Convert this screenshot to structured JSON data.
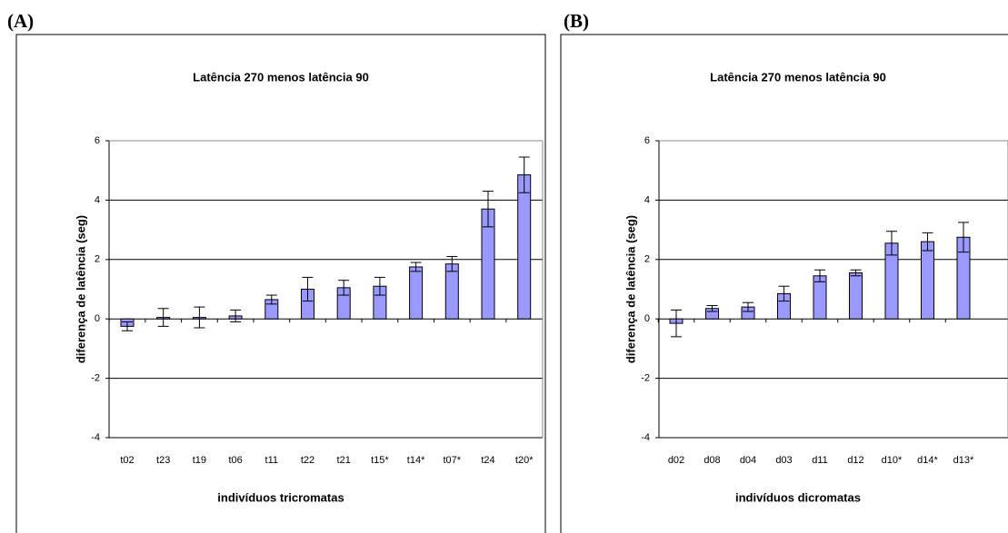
{
  "chart_data": [
    {
      "type": "bar",
      "panel_label": "(A)",
      "title": "Latência 270 menos latência 90",
      "y_label": "diferença de latência (seg)",
      "x_label": "indivíduos tricromatas",
      "categories": [
        "t02",
        "t23",
        "t19",
        "t06",
        "t11",
        "t22",
        "t21",
        "t15*",
        "t14*",
        "t07*",
        "t24",
        "t20*"
      ],
      "values": [
        -0.25,
        0.05,
        0.05,
        0.1,
        0.65,
        1.0,
        1.05,
        1.1,
        1.75,
        1.85,
        3.7,
        4.85
      ],
      "errors": [
        0.15,
        0.3,
        0.35,
        0.2,
        0.15,
        0.4,
        0.25,
        0.3,
        0.15,
        0.25,
        0.6,
        0.6
      ],
      "color": "#9999ff",
      "ylim": [
        -4,
        6
      ],
      "yticks": [
        -4,
        -2,
        0,
        2,
        4,
        6
      ],
      "grid": true
    },
    {
      "type": "bar",
      "panel_label": "(B)",
      "title": "Latência 270 menos latência 90",
      "y_label": "diferença de latência (seg)",
      "x_label": "indivíduos dicromatas",
      "categories": [
        "d02",
        "d08",
        "d04",
        "d03",
        "d11",
        "d12",
        "d10*",
        "d14*",
        "d13*"
      ],
      "values": [
        -0.15,
        0.35,
        0.4,
        0.85,
        1.45,
        1.55,
        2.55,
        2.6,
        2.75
      ],
      "errors": [
        0.45,
        0.1,
        0.15,
        0.25,
        0.2,
        0.1,
        0.4,
        0.3,
        0.5
      ],
      "color": "#9999ff",
      "ylim": [
        -4,
        6
      ],
      "yticks": [
        -4,
        -2,
        0,
        2,
        4,
        6
      ],
      "grid": true
    }
  ]
}
